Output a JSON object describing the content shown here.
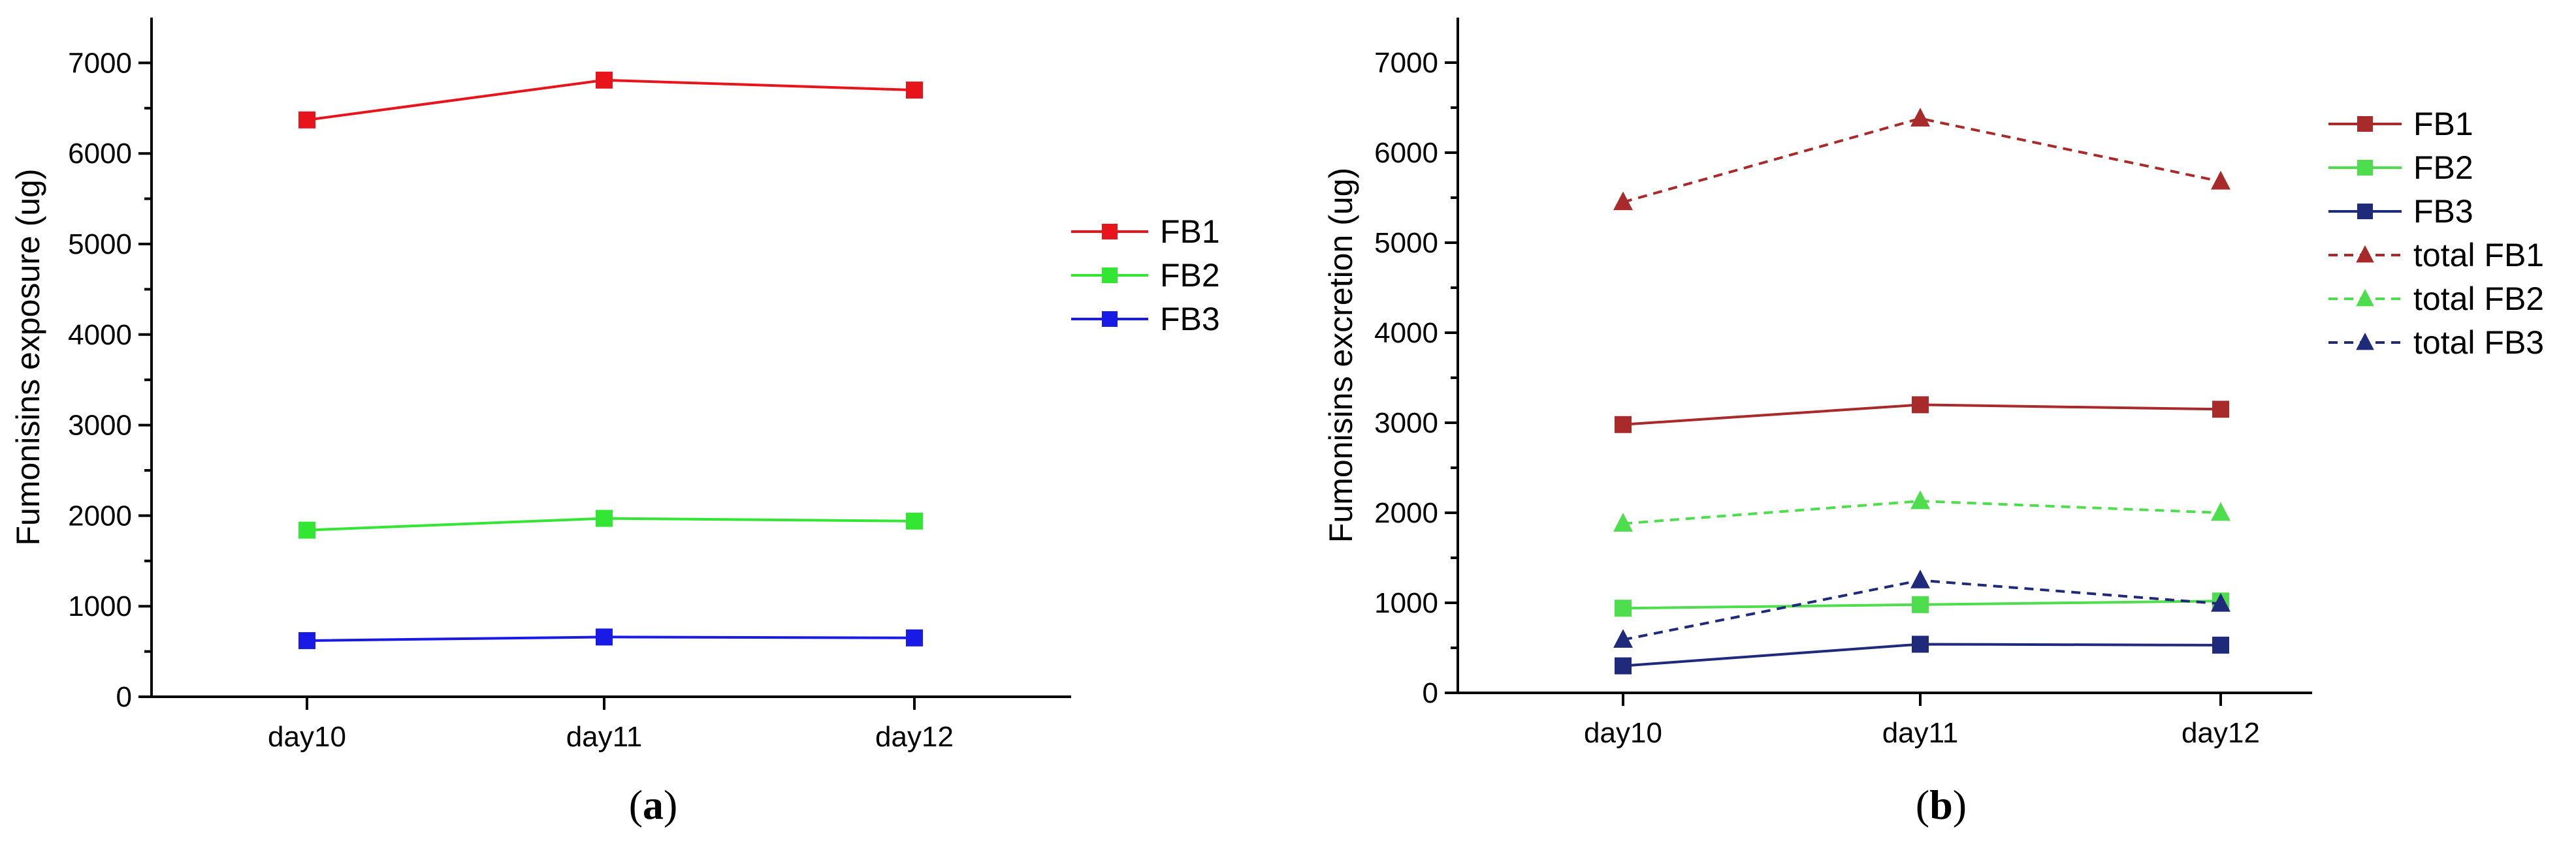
{
  "chart_data": [
    {
      "type": "line",
      "panel": "a",
      "panel_label": "(a)",
      "panel_letter": "a",
      "ylabel": "Fumonisins exposure (ug)",
      "xlabel": "",
      "categories": [
        "day10",
        "day11",
        "day12"
      ],
      "ylim": [
        0,
        7500
      ],
      "yticks": [
        0,
        1000,
        2000,
        3000,
        4000,
        5000,
        6000,
        7000
      ],
      "legend_position": "right",
      "series": [
        {
          "name": "FB1",
          "color": "#e8141c",
          "marker": "square",
          "dash": "solid",
          "values": [
            6370,
            6810,
            6700
          ]
        },
        {
          "name": "FB2",
          "color": "#33e633",
          "marker": "square",
          "dash": "solid",
          "values": [
            1840,
            1970,
            1940
          ]
        },
        {
          "name": "FB3",
          "color": "#1a1ae6",
          "marker": "square",
          "dash": "solid",
          "values": [
            620,
            660,
            650
          ]
        }
      ]
    },
    {
      "type": "line",
      "panel": "b",
      "panel_label": "(b)",
      "panel_letter": "b",
      "ylabel": "Fumonisins excretion (ug)",
      "xlabel": "",
      "categories": [
        "day10",
        "day11",
        "day12"
      ],
      "ylim": [
        0,
        7500
      ],
      "yticks": [
        0,
        1000,
        2000,
        3000,
        4000,
        5000,
        6000,
        7000
      ],
      "legend_position": "right",
      "series": [
        {
          "name": "FB1",
          "color": "#a82a2a",
          "marker": "square",
          "dash": "solid",
          "values": [
            2980,
            3200,
            3150
          ]
        },
        {
          "name": "FB2",
          "color": "#4ddd4d",
          "marker": "square",
          "dash": "solid",
          "values": [
            940,
            980,
            1020
          ]
        },
        {
          "name": "FB3",
          "color": "#1f2a7a",
          "marker": "square",
          "dash": "solid",
          "values": [
            300,
            540,
            530
          ]
        },
        {
          "name": "total FB1",
          "color": "#a82a2a",
          "marker": "triangle",
          "dash": "dashed",
          "values": [
            5450,
            6380,
            5680
          ]
        },
        {
          "name": "total FB2",
          "color": "#4ddd4d",
          "marker": "triangle",
          "dash": "dashed",
          "values": [
            1880,
            2130,
            2000
          ]
        },
        {
          "name": "total FB3",
          "color": "#1f2a7a",
          "marker": "triangle",
          "dash": "dashed",
          "values": [
            590,
            1250,
            990
          ]
        }
      ]
    }
  ]
}
